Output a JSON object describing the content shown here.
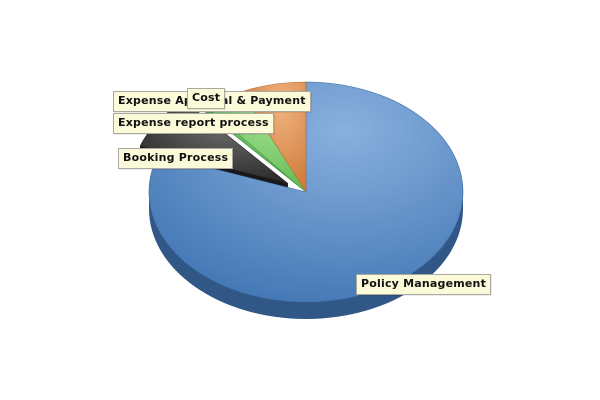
{
  "chart_data": {
    "type": "pie",
    "title": "",
    "categories": [
      "Policy Management",
      "Booking Process",
      "Expense report process",
      "Expense Approval & Payment",
      "Cost"
    ],
    "values": [
      80.5,
      8.0,
      0.6,
      4.2,
      6.7
    ],
    "colors": [
      "#4a86cc",
      "#2b2b2b",
      "#3fae3f",
      "#6fd15a",
      "#e8883b"
    ]
  }
}
